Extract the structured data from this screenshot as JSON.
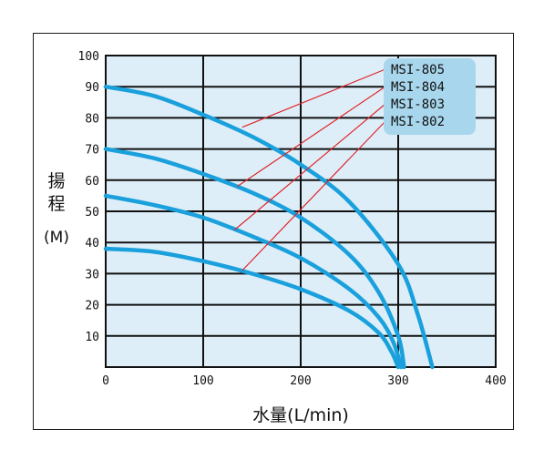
{
  "chart_data": {
    "type": "line",
    "title": "",
    "xlabel": "水量(L/min)",
    "ylabel_chars": [
      "揚",
      "程"
    ],
    "ylabel_unit": "(M)",
    "xlim": [
      0,
      400
    ],
    "ylim": [
      0,
      100
    ],
    "x_ticks": [
      "0",
      "100",
      "200",
      "300",
      "400"
    ],
    "y_ticks": [
      "10",
      "20",
      "30",
      "40",
      "50",
      "60",
      "70",
      "80",
      "90",
      "100"
    ],
    "grid": true,
    "legend_position": "top-right",
    "series": [
      {
        "name": "MSI-805",
        "x": [
          0,
          50,
          100,
          150,
          200,
          250,
          300,
          320,
          335
        ],
        "y": [
          90,
          87,
          81,
          74,
          65,
          53,
          33,
          17,
          0
        ]
      },
      {
        "name": "MSI-804",
        "x": [
          0,
          50,
          100,
          150,
          200,
          250,
          280,
          300,
          306
        ],
        "y": [
          70,
          67,
          62,
          56,
          48,
          36,
          24,
          10,
          0
        ]
      },
      {
        "name": "MSI-803",
        "x": [
          0,
          50,
          100,
          150,
          200,
          250,
          280,
          295,
          303
        ],
        "y": [
          55,
          52,
          48,
          42,
          35,
          25,
          16,
          8,
          0
        ]
      },
      {
        "name": "MSI-802",
        "x": [
          0,
          50,
          100,
          150,
          200,
          250,
          280,
          293,
          300
        ],
        "y": [
          38,
          37,
          34,
          30,
          25,
          18,
          11,
          5,
          0
        ]
      }
    ],
    "annotation_points": [
      {
        "series": "MSI-805",
        "x": 140,
        "y": 77
      },
      {
        "series": "MSI-804",
        "x": 135,
        "y": 58
      },
      {
        "series": "MSI-803",
        "x": 132,
        "y": 44
      },
      {
        "series": "MSI-802",
        "x": 140,
        "y": 31
      }
    ],
    "colors": {
      "plot_background": "#ddeef8",
      "curve": "#1aa0dc",
      "grid": "#111111",
      "leader_line": "#e0252b",
      "legend_box": "#a8d6ec"
    }
  }
}
